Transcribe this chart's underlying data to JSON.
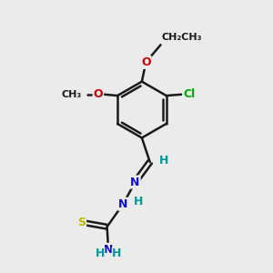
{
  "bg_color": "#ebebeb",
  "bond_color": "#1a1a1a",
  "bond_width": 1.8,
  "font_size": 9,
  "atom_colors": {
    "C": "#1a1a1a",
    "N": "#1010cc",
    "O": "#cc0000",
    "S": "#bbbb00",
    "Cl": "#00aa00",
    "H": "#009999"
  }
}
